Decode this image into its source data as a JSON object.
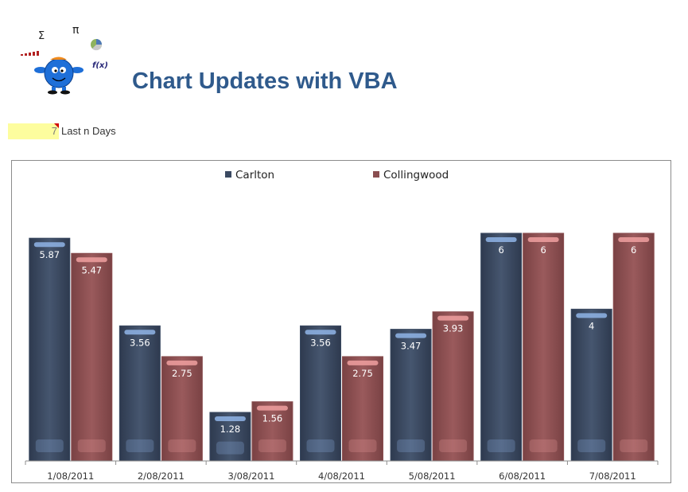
{
  "header": {
    "title": "Chart Updates with VBA",
    "logo_symbols": {
      "sigma": "Σ",
      "pi": "π",
      "fx": "f(x)"
    }
  },
  "controls": {
    "days_value": "7",
    "days_label": "Last n Days"
  },
  "colors": {
    "title": "#2f5a8c",
    "carlton": "#3b4a62",
    "collingwood": "#8a4e50",
    "input_fill": "#fdfd9e"
  },
  "chart_data": {
    "type": "bar",
    "categories": [
      "1/08/2011",
      "2/08/2011",
      "3/08/2011",
      "4/08/2011",
      "5/08/2011",
      "6/08/2011",
      "7/08/2011"
    ],
    "series": [
      {
        "name": "Carlton",
        "values": [
          5.87,
          3.56,
          1.28,
          3.56,
          3.47,
          6,
          4
        ],
        "labels": [
          "5.87",
          "3.56",
          "1.28",
          "3.56",
          "3.47",
          "6",
          "4"
        ]
      },
      {
        "name": "Collingwood",
        "values": [
          5.47,
          2.75,
          1.56,
          2.75,
          3.93,
          6,
          6
        ],
        "labels": [
          "5.47",
          "2.75",
          "1.56",
          "2.75",
          "3.93",
          "6",
          "6"
        ]
      }
    ],
    "title": "",
    "xlabel": "",
    "ylabel": "",
    "ylim": [
      0,
      6
    ],
    "grid": false,
    "legend": "top-center"
  }
}
